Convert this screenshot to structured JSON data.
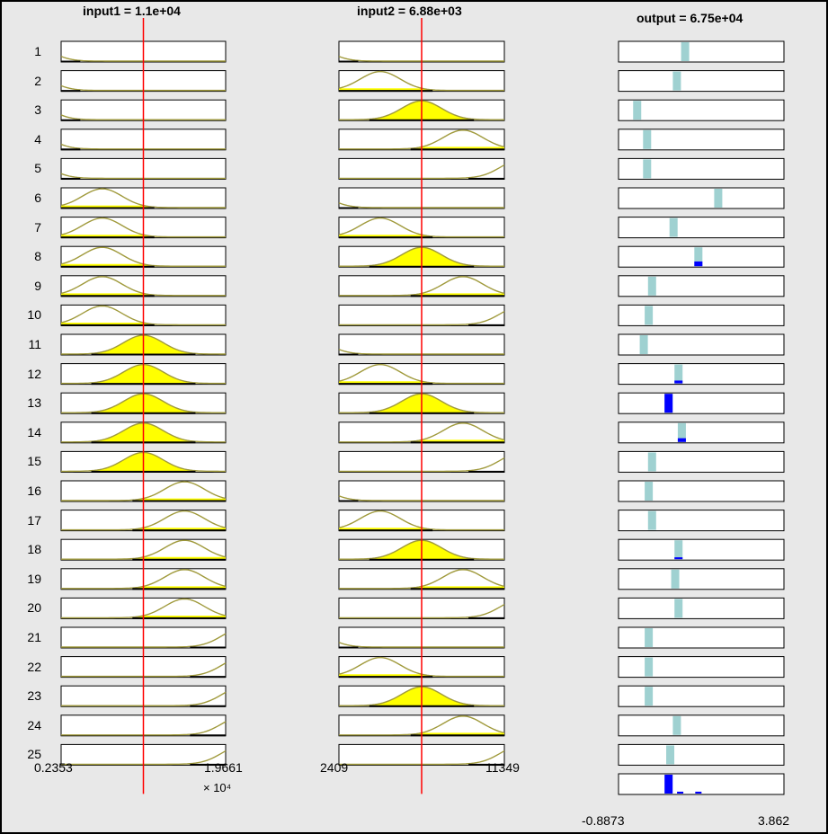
{
  "headers": {
    "input1": "input1 = 1.1e+04",
    "input2": "input2 = 6.88e+03",
    "output": "output = 6.75e+04"
  },
  "rows": [
    "1",
    "2",
    "3",
    "4",
    "5",
    "6",
    "7",
    "8",
    "9",
    "10",
    "11",
    "12",
    "13",
    "14",
    "15",
    "16",
    "17",
    "18",
    "19",
    "20",
    "21",
    "22",
    "23",
    "24",
    "25"
  ],
  "ranges": {
    "input1_min": "0.2353",
    "input1_max": "1.9661",
    "input1_exponent": "× 10⁴",
    "input2_min": "2409",
    "input2_max": "11349",
    "output_min": "-0.8873",
    "output_max": "3.862"
  },
  "input_values": {
    "input1_fraction": 0.5,
    "input2_fraction": 0.5
  },
  "colors": {
    "frame": "#000000",
    "background": "#e8e8e8",
    "axis_box": "#ffffff",
    "mf_curve": "#a09a3c",
    "mf_fill": "#ffff00",
    "input_line": "#ff0000",
    "output_bar": "#9fd1d1",
    "output_active": "#0000ff"
  },
  "rule_mfs": {
    "input1": [
      1,
      1,
      1,
      1,
      1,
      2,
      2,
      2,
      2,
      2,
      3,
      3,
      3,
      3,
      3,
      4,
      4,
      4,
      4,
      4,
      5,
      5,
      5,
      5,
      5
    ],
    "input2": [
      1,
      2,
      3,
      4,
      5,
      1,
      2,
      3,
      4,
      5,
      1,
      2,
      3,
      4,
      5,
      1,
      2,
      3,
      4,
      5,
      1,
      2,
      3,
      4,
      5
    ]
  },
  "output_bars": [
    {
      "pos": 0.4,
      "firing": 0.0
    },
    {
      "pos": 0.35,
      "firing": 0.0
    },
    {
      "pos": 0.11,
      "firing": 0.0
    },
    {
      "pos": 0.17,
      "firing": 0.0
    },
    {
      "pos": 0.17,
      "firing": 0.0
    },
    {
      "pos": 0.6,
      "firing": 0.0
    },
    {
      "pos": 0.33,
      "firing": 0.0
    },
    {
      "pos": 0.48,
      "firing": 0.25
    },
    {
      "pos": 0.2,
      "firing": 0.0
    },
    {
      "pos": 0.18,
      "firing": 0.0
    },
    {
      "pos": 0.15,
      "firing": 0.0
    },
    {
      "pos": 0.36,
      "firing": 0.15
    },
    {
      "pos": 0.3,
      "firing": 1.0
    },
    {
      "pos": 0.38,
      "firing": 0.2
    },
    {
      "pos": 0.2,
      "firing": 0.0
    },
    {
      "pos": 0.18,
      "firing": 0.0
    },
    {
      "pos": 0.2,
      "firing": 0.0
    },
    {
      "pos": 0.36,
      "firing": 0.1
    },
    {
      "pos": 0.34,
      "firing": 0.0
    },
    {
      "pos": 0.36,
      "firing": 0.0
    },
    {
      "pos": 0.18,
      "firing": 0.0
    },
    {
      "pos": 0.18,
      "firing": 0.0
    },
    {
      "pos": 0.18,
      "firing": 0.0
    },
    {
      "pos": 0.35,
      "firing": 0.0
    },
    {
      "pos": 0.31,
      "firing": 0.0
    }
  ],
  "aggregate": {
    "main_pos": 0.3,
    "extras": [
      {
        "pos": 0.37,
        "height": 0.1
      },
      {
        "pos": 0.48,
        "height": 0.1
      }
    ]
  }
}
